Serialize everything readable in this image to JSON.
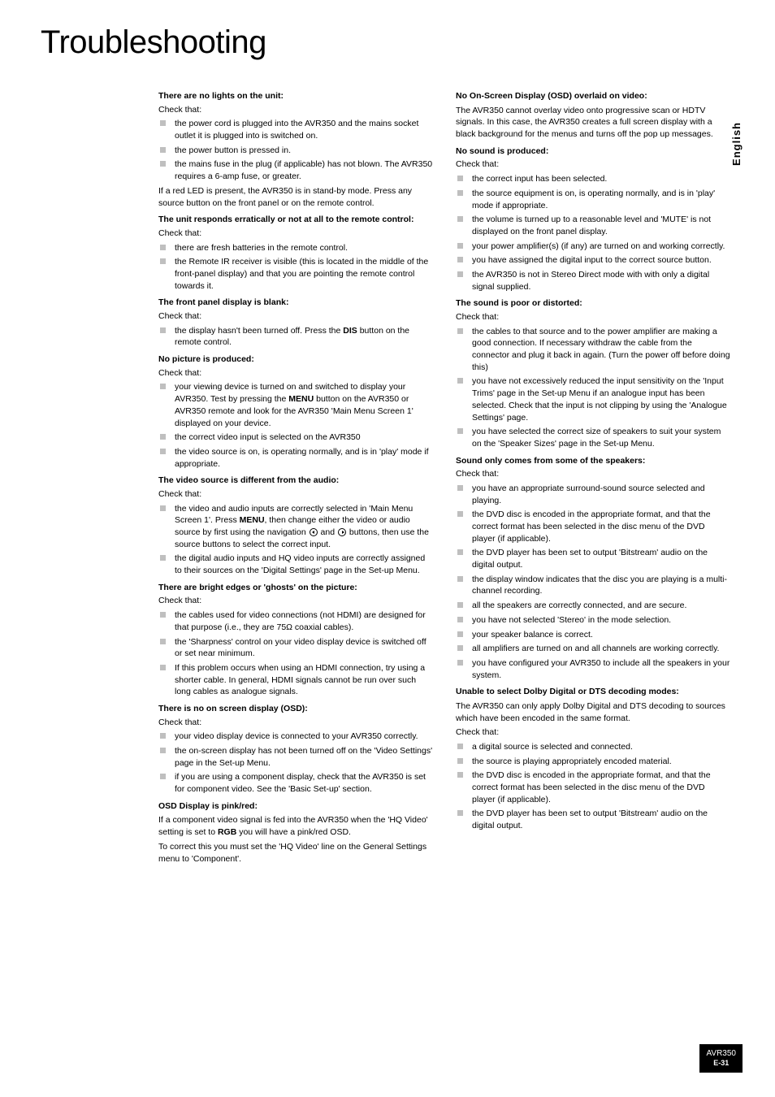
{
  "title": "Troubleshooting",
  "side_tab": "English",
  "footer": {
    "model": "AVR350",
    "page": "E-31"
  },
  "left": {
    "s1": {
      "head": "There are no lights on the unit:",
      "check": "Check that:",
      "i1": "the power cord is plugged into the AVR350 and the mains socket outlet it is plugged into is switched on.",
      "i2": "the power button is pressed in.",
      "i3": "the mains fuse in the plug (if applicable) has not blown. The AVR350 requires a 6-amp fuse, or greater.",
      "p1": "If a red LED is present, the AVR350 is in stand-by mode. Press any source button on the front panel or on the remote control."
    },
    "s2": {
      "head": "The unit responds erratically or not at all to the remote control:",
      "check": "Check that:",
      "i1": "there are fresh batteries in the remote control.",
      "i2": "the Remote IR receiver is visible (this is located in the middle of the front-panel display) and that you are pointing the remote control towards it."
    },
    "s3": {
      "head": "The front panel display is blank:",
      "check": "Check that:",
      "i1a": "the display hasn't been turned off. Press the ",
      "i1b": "DIS",
      "i1c": " button on the remote control."
    },
    "s4": {
      "head": "No picture is produced:",
      "check": "Check that:",
      "i1a": "your viewing device is turned on and switched to display your AVR350. Test by pressing the ",
      "i1b": "MENU",
      "i1c": " button on the AVR350 or AVR350 remote and look for the AVR350 'Main Menu Screen 1' displayed on your device.",
      "i2": "the correct video input is selected on the AVR350",
      "i3": "the video source is on, is operating normally, and is in 'play' mode if appropriate."
    },
    "s5": {
      "head": "The video source is different from the audio:",
      "check": "Check that:",
      "i1a": "the video and audio inputs are correctly selected in 'Main Menu Screen 1'. Press ",
      "i1b": "MENU",
      "i1c": ", then change either the video or audio source by first using the navigation ",
      "i1d": " and ",
      "i1e": " buttons, then use the source buttons to select the correct input.",
      "i2": "the digital audio inputs and HQ video inputs are correctly assigned to their sources on the 'Digital Settings' page in the Set-up Menu."
    },
    "s6": {
      "head": "There are bright edges or 'ghosts' on the picture:",
      "check": "Check that:",
      "i1": "the cables used for video connections (not HDMI) are designed for that purpose (i.e., they are 75Ω coaxial cables).",
      "i2": "the 'Sharpness' control on your video display device is switched off or set near minimum.",
      "i3": "If this problem occurs when using an HDMI connection, try using a shorter cable. In general, HDMI signals cannot be run over such long cables as analogue signals."
    },
    "s7": {
      "head": "There is no on screen display (OSD):",
      "check": "Check that:",
      "i1": "your video display device is connected to your AVR350 correctly.",
      "i2": "the on-screen display has not been turned off on the 'Video Settings' page in the Set-up Menu.",
      "i3": "if you are using a component display, check that the AVR350 is set for component video. See the 'Basic Set-up' section."
    },
    "s8": {
      "head": "OSD Display is pink/red:",
      "p1a": "If a component video signal is fed into the AVR350 when the 'HQ Video' setting is set to ",
      "p1b": "RGB",
      "p1c": " you will have a pink/red OSD.",
      "p2": "To correct this you must set the 'HQ Video' line on the General Settings menu to 'Component'."
    }
  },
  "right": {
    "s1": {
      "head": "No On-Screen Display (OSD) overlaid on video:",
      "p1": "The AVR350 cannot overlay video onto progressive scan or HDTV signals. In this case, the AVR350 creates a full screen display with a black background for the menus and turns off the pop up messages."
    },
    "s2": {
      "head": "No sound is produced:",
      "check": "Check that:",
      "i1": "the correct input has been selected.",
      "i2": "the source equipment is on, is operating normally, and is in 'play' mode if appropriate.",
      "i3": "the volume is turned up to a reasonable level and 'MUTE' is not displayed on the front panel display.",
      "i4": "your power amplifier(s) (if any) are turned on and working correctly.",
      "i5": "you have assigned the digital input to the correct source button.",
      "i6": "the AVR350 is not in Stereo Direct mode with with only a digital signal supplied."
    },
    "s3": {
      "head": "The sound is poor or distorted:",
      "check": "Check that:",
      "i1": "the cables to that source and to the power amplifier are making a good connection. If necessary withdraw the cable from the connector and plug it back in again. (Turn the power off before doing this)",
      "i2": "you have not excessively reduced the input sensitivity on the 'Input Trims' page in the Set-up Menu if an analogue input has been selected. Check that the input is not clipping by using the 'Analogue Settings' page.",
      "i3": "you have selected the correct size of speakers to suit your system on the 'Speaker Sizes' page in the Set-up Menu."
    },
    "s4": {
      "head": "Sound only comes from some of the speakers:",
      "check": "Check that:",
      "i1": "you have an appropriate surround-sound source selected and playing.",
      "i2": "the DVD disc is encoded in the appropriate format, and that the correct format has been selected in the disc menu of the DVD player (if applicable).",
      "i3": "the DVD player has been set to output 'Bitstream' audio on the digital output.",
      "i4": "the display window indicates that the disc you are playing is a multi-channel recording.",
      "i5": "all the speakers are correctly connected, and are secure.",
      "i6": "you have not selected 'Stereo' in the mode selection.",
      "i7": "your speaker balance is correct.",
      "i8": "all amplifiers are turned on and all channels are working correctly.",
      "i9": "you have configured your AVR350 to include all the speakers in your system."
    },
    "s5": {
      "head": "Unable to select Dolby Digital or DTS decoding modes:",
      "p1": "The AVR350 can only apply Dolby Digital and DTS decoding to sources which have been encoded in the same format.",
      "check": "Check that:",
      "i1": "a digital source is selected and connected.",
      "i2": "the source is playing appropriately encoded material.",
      "i3": "the DVD disc is encoded in the appropriate format, and that the correct format has been selected in the disc menu of the DVD player (if applicable).",
      "i4": "the DVD player has been set to output 'Bitstream' audio on the digital output."
    }
  }
}
